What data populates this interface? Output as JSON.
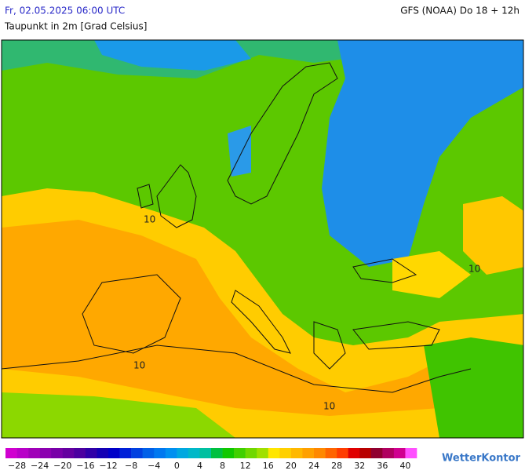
{
  "header": {
    "datetime": "Fr, 02.05.2025 06:00 UTC",
    "model": "GFS (NOAA) Do 18 + 12h",
    "subtitle": "Taupunkt in 2m [Grad Celsius]"
  },
  "map": {
    "contour_labels": [
      "10",
      "10",
      "10",
      "10"
    ]
  },
  "legend": {
    "labels": [
      "−28",
      "−24",
      "−20",
      "−16",
      "−12",
      "−8",
      "−4",
      "0",
      "4",
      "8",
      "12",
      "16",
      "20",
      "24",
      "28",
      "32",
      "36",
      "40"
    ],
    "colors": [
      "#d000d0",
      "#b800c8",
      "#a000b8",
      "#8c00b0",
      "#7800a8",
      "#6400a0",
      "#4c00a0",
      "#3000a8",
      "#1400b4",
      "#0000c8",
      "#0020d8",
      "#0040e0",
      "#0060e8",
      "#0078f0",
      "#0090f0",
      "#00a8e0",
      "#00b8c8",
      "#00c0a0",
      "#00c040",
      "#10c800",
      "#40d000",
      "#70d800",
      "#a0e000",
      "#ffe600",
      "#ffd000",
      "#ffb800",
      "#ffa000",
      "#ff8800",
      "#ff6400",
      "#ff3c00",
      "#e00000",
      "#b80000",
      "#900030",
      "#b00060",
      "#d00090",
      "#ff50ff"
    ]
  },
  "brand": "WetterKontor"
}
